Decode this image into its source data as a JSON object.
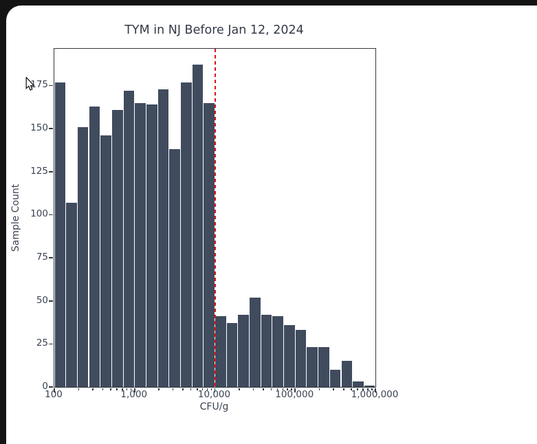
{
  "window": {
    "frame_color": "#141414",
    "background_color": "#ffffff"
  },
  "chart_data": {
    "type": "bar",
    "title": "TYM in NJ Before Jan 12, 2024",
    "xlabel": "CFU/g",
    "ylabel": "Sample Count",
    "x_scale": "log",
    "xlim_log10": [
      2,
      6
    ],
    "ylim": [
      0,
      196.35
    ],
    "grid": false,
    "bins_per_decade": 7,
    "bin_start": 100,
    "bin_end": 1000000,
    "values": [
      177,
      107,
      151,
      163,
      146,
      161,
      172,
      165,
      164,
      173,
      138,
      177,
      187,
      165,
      41,
      37,
      42,
      52,
      42,
      41,
      36,
      33,
      23,
      23,
      10,
      15,
      3,
      1
    ],
    "x_tick_values": [
      100,
      1000,
      10000,
      100000,
      1000000
    ],
    "x_tick_labels": [
      "100",
      "1,000",
      "10,000",
      "100,000",
      "1,000,000"
    ],
    "y_tick_values": [
      0,
      25,
      50,
      75,
      100,
      125,
      150,
      175
    ],
    "y_tick_labels": [
      "0",
      "25",
      "50",
      "75",
      "100",
      "125",
      "150",
      "175"
    ],
    "vline": {
      "x": 10000,
      "color": "#e01111",
      "style": "dashed"
    },
    "colors": {
      "bar": "#404b5e",
      "bar_gap": "#ffffff",
      "spine": "#32383f",
      "text": "#3a4351",
      "title": "#333b47"
    }
  }
}
